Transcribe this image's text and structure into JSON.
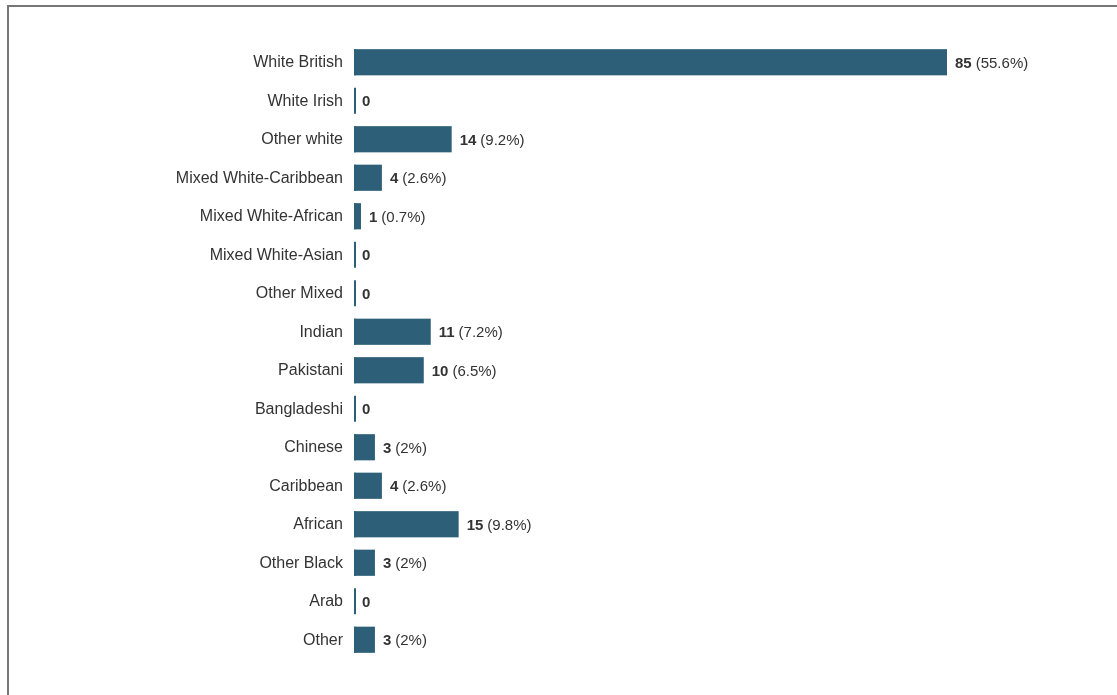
{
  "chart_data": {
    "type": "bar",
    "orientation": "horizontal",
    "categories": [
      "White British",
      "White Irish",
      "Other white",
      "Mixed White-Caribbean",
      "Mixed White-African",
      "Mixed White-Asian",
      "Other Mixed",
      "Indian",
      "Pakistani",
      "Bangladeshi",
      "Chinese",
      "Caribbean",
      "African",
      "Other Black",
      "Arab",
      "Other"
    ],
    "values": [
      85,
      0,
      14,
      4,
      1,
      0,
      0,
      11,
      10,
      0,
      3,
      4,
      15,
      3,
      0,
      3
    ],
    "value_labels": [
      "85 (55.6%)",
      "0",
      "14 (9.2%)",
      "4 (2.6%)",
      "1 (0.7%)",
      "0",
      "0",
      "11 (7.2%)",
      "10 (6.5%)",
      "0",
      "3 (2%)",
      "4 (2.6%)",
      "15 (9.8%)",
      "3 (2%)",
      "0",
      "3 (2%)"
    ],
    "color": "#2e5f78"
  }
}
